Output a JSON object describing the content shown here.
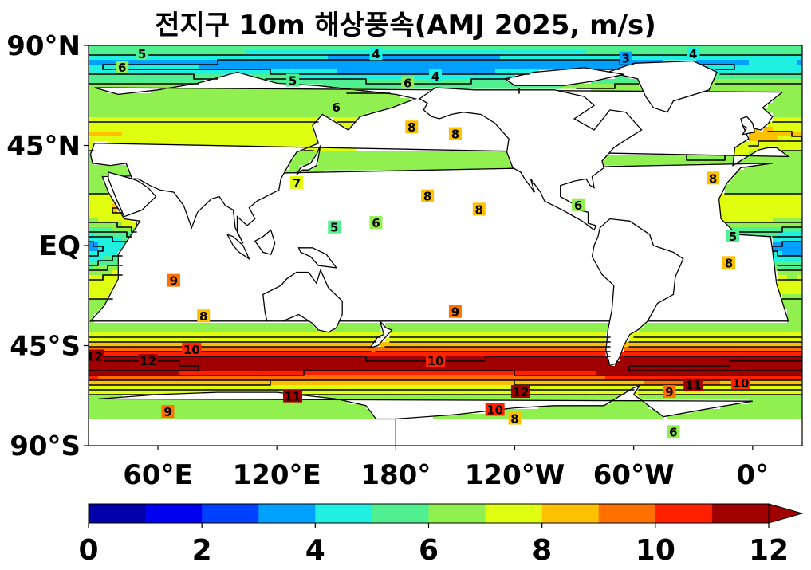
{
  "title": "전지구 10m 해상풍속(AMJ 2025, m/s)",
  "y_ticks": [
    {
      "label": "90°N",
      "lat": 90
    },
    {
      "label": "45°N",
      "lat": 45
    },
    {
      "label": "EQ",
      "lat": 0
    },
    {
      "label": "45°S",
      "lat": -45
    },
    {
      "label": "90°S",
      "lat": -90
    }
  ],
  "x_ticks": [
    {
      "label": "60°E",
      "lon": 60
    },
    {
      "label": "120°E",
      "lon": 120
    },
    {
      "label": "180°",
      "lon": 180
    },
    {
      "label": "120°W",
      "lon": 240
    },
    {
      "label": "60°W",
      "lon": 300
    },
    {
      "label": "0°",
      "lon": 360
    }
  ],
  "map_extent": {
    "lon_min": 25,
    "lon_max": 385,
    "lat_min": -90,
    "lat_max": 90
  },
  "colorbar": {
    "min": 0,
    "max": 12,
    "step": 1,
    "extend": "max",
    "colors": [
      "#0000a8",
      "#0000f0",
      "#0040ff",
      "#00a0ff",
      "#20f0e0",
      "#50f090",
      "#90f050",
      "#e0ff10",
      "#ffc000",
      "#ff7000",
      "#ff2000",
      "#a00000"
    ],
    "tick_labels": [
      "0",
      "2",
      "4",
      "6",
      "8",
      "10",
      "12"
    ]
  },
  "land_color": "#ffffff",
  "contour_labels": [
    {
      "text": "4",
      "lon": 170,
      "lat": 86
    },
    {
      "text": "5",
      "lon": 52,
      "lat": 86
    },
    {
      "text": "6",
      "lon": 42,
      "lat": 80
    },
    {
      "text": "5",
      "lon": 128,
      "lat": 74
    },
    {
      "text": "4",
      "lon": 200,
      "lat": 76
    },
    {
      "text": "6",
      "lon": 186,
      "lat": 73
    },
    {
      "text": "3",
      "lon": 296,
      "lat": 84
    },
    {
      "text": "4",
      "lon": 330,
      "lat": 86
    },
    {
      "text": "6",
      "lon": 150,
      "lat": 62
    },
    {
      "text": "8",
      "lon": 188,
      "lat": 53
    },
    {
      "text": "8",
      "lon": 210,
      "lat": 50
    },
    {
      "text": "7",
      "lon": 130,
      "lat": 28
    },
    {
      "text": "8",
      "lon": 196,
      "lat": 22
    },
    {
      "text": "8",
      "lon": 222,
      "lat": 16
    },
    {
      "text": "6",
      "lon": 170,
      "lat": 10
    },
    {
      "text": "5",
      "lon": 149,
      "lat": 8
    },
    {
      "text": "6",
      "lon": 272,
      "lat": 18
    },
    {
      "text": "8",
      "lon": 340,
      "lat": 30
    },
    {
      "text": "5",
      "lon": 350,
      "lat": 4
    },
    {
      "text": "8",
      "lon": 348,
      "lat": -8
    },
    {
      "text": "9",
      "lon": 68,
      "lat": -16
    },
    {
      "text": "8",
      "lon": 83,
      "lat": -32
    },
    {
      "text": "9",
      "lon": 210,
      "lat": -30
    },
    {
      "text": "10",
      "lon": 77,
      "lat": -47
    },
    {
      "text": "12",
      "lon": 28,
      "lat": -50
    },
    {
      "text": "12",
      "lon": 55,
      "lat": -52
    },
    {
      "text": "10",
      "lon": 200,
      "lat": -52
    },
    {
      "text": "12",
      "lon": 243,
      "lat": -66
    },
    {
      "text": "11",
      "lon": 128,
      "lat": -68
    },
    {
      "text": "10",
      "lon": 230,
      "lat": -74
    },
    {
      "text": "11",
      "lon": 330,
      "lat": -63
    },
    {
      "text": "9",
      "lon": 318,
      "lat": -66
    },
    {
      "text": "10",
      "lon": 354,
      "lat": -62
    },
    {
      "text": "9",
      "lon": 65,
      "lat": -75
    },
    {
      "text": "8",
      "lon": 240,
      "lat": -78
    },
    {
      "text": "6",
      "lon": 320,
      "lat": -84
    }
  ]
}
